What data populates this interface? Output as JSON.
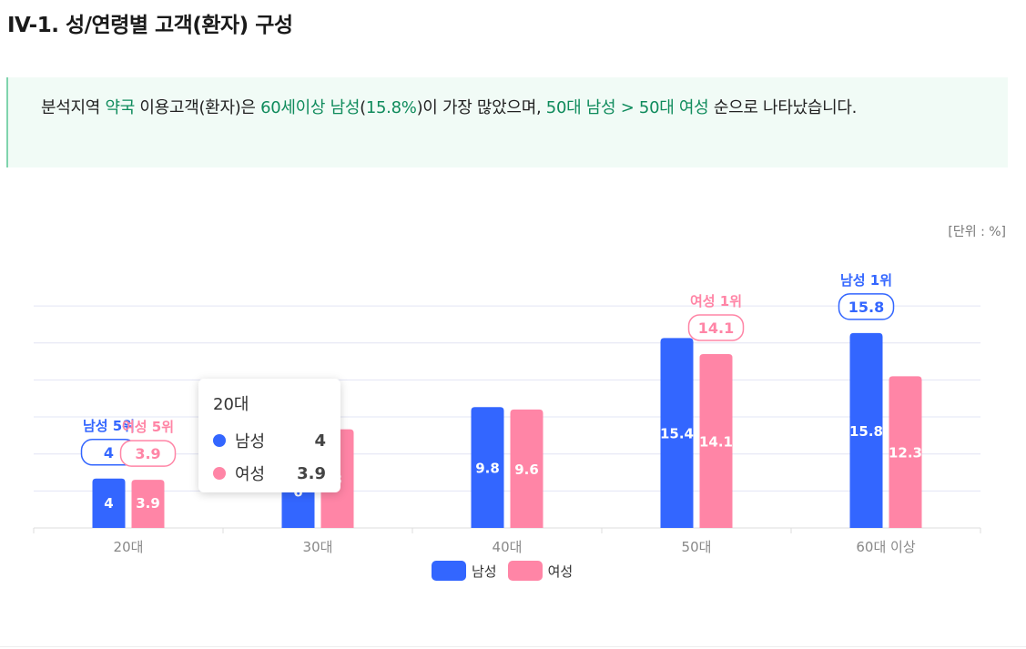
{
  "header": {
    "title": "IV-1. 성/연령별 고객(환자) 구성"
  },
  "summary": {
    "parts": [
      {
        "text": "분석지역 ",
        "hl": false
      },
      {
        "text": "약국",
        "hl": true
      },
      {
        "text": " 이용고객(환자)은 ",
        "hl": false
      },
      {
        "text": "60세이상 남성",
        "hl": true
      },
      {
        "text": "(",
        "hl": false
      },
      {
        "text": "15.8%",
        "hl": true
      },
      {
        "text": ")이 가장 많았으며, ",
        "hl": false
      },
      {
        "text": "50대 남성 > 50대 여성",
        "hl": true
      },
      {
        "text": " 순으로 나타났습니다.",
        "hl": false
      }
    ],
    "highlight_color": "#0f8b5c"
  },
  "unit_label": "[단위 : %]",
  "chart_data": {
    "type": "bar",
    "categories": [
      "20대",
      "30대",
      "40대",
      "50대",
      "60대 이상"
    ],
    "series": [
      {
        "name": "남성",
        "color": "#3366ff",
        "values": [
          4,
          6.0,
          9.8,
          15.4,
          15.8
        ]
      },
      {
        "name": "여성",
        "color": "#ff85a6",
        "values": [
          3.9,
          8.0,
          9.6,
          14.1,
          12.3
        ]
      }
    ],
    "ylim": [
      0,
      18
    ],
    "grid": true,
    "legend_position": "bottom-center",
    "annotations": [
      {
        "series": 0,
        "category": 0,
        "rank_label": "남성 5위",
        "value": "4"
      },
      {
        "series": 1,
        "category": 0,
        "rank_label": "여성 5위",
        "value": "3.9"
      },
      {
        "series": 1,
        "category": 3,
        "rank_label": "여성 1위",
        "value": "14.1"
      },
      {
        "series": 0,
        "category": 4,
        "rank_label": "남성 1위",
        "value": "15.8"
      }
    ]
  },
  "tooltip": {
    "title": "20대",
    "rows": [
      {
        "name": "남성",
        "value": "4",
        "color": "#3366ff"
      },
      {
        "name": "여성",
        "value": "3.9",
        "color": "#ff85a6"
      }
    ]
  },
  "legend": [
    {
      "name": "남성",
      "color": "#3366ff"
    },
    {
      "name": "여성",
      "color": "#ff85a6"
    }
  ]
}
